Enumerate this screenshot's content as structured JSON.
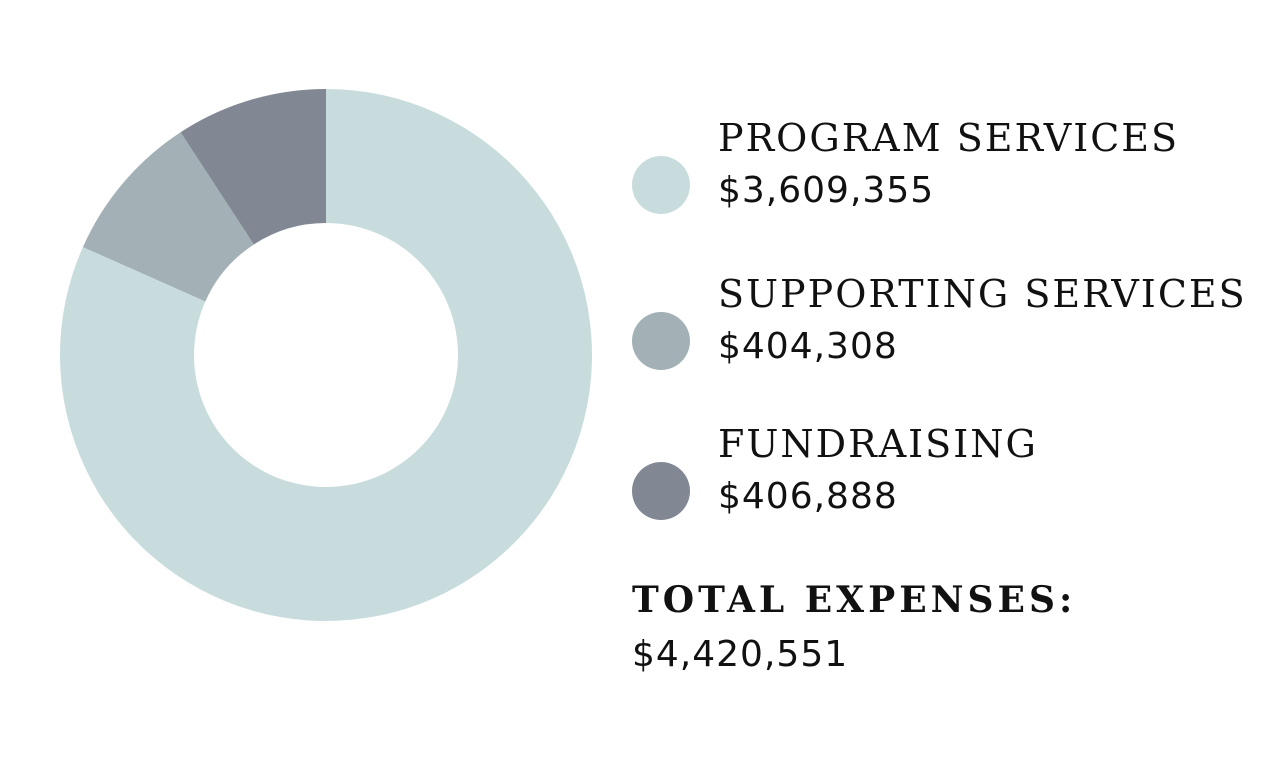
{
  "chart_data": {
    "type": "pie",
    "donut": true,
    "title": "",
    "slices": [
      {
        "label": "PROGRAM SERVICES",
        "value": 3609355,
        "value_label": "$3,609,355",
        "color": "#c8dcde"
      },
      {
        "label": "SUPPORTING SERVICES",
        "value": 404308,
        "value_label": "$404,308",
        "color": "#a3b1b7"
      },
      {
        "label": "FUNDRAISING",
        "value": 406888,
        "value_label": "$406,888",
        "color": "#828893"
      }
    ],
    "legend_placement": "right",
    "total": {
      "label": "TOTAL EXPENSES:",
      "value": 4420551,
      "value_label": "$4,420,551"
    }
  }
}
